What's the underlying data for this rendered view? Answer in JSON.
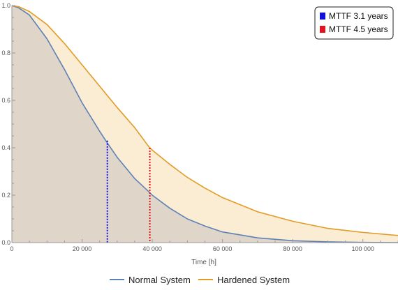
{
  "chart_data": {
    "type": "area",
    "title": "",
    "xlabel": "Time [h]",
    "ylabel": "",
    "xlim": [
      0,
      110000
    ],
    "ylim": [
      0,
      1.0
    ],
    "x_ticks": [
      0,
      20000,
      40000,
      60000,
      80000,
      100000
    ],
    "x_tick_labels": [
      "0",
      "20 000",
      "40 000",
      "60 000",
      "80 000",
      "100 000"
    ],
    "y_ticks": [
      0,
      0.2,
      0.4,
      0.6,
      0.8,
      1.0
    ],
    "y_tick_labels": [
      "0.0",
      "0.2",
      "0.4",
      "0.6",
      "0.8",
      "1.0"
    ],
    "grid": false,
    "series": [
      {
        "name": "Normal System",
        "color": "#5e81b5",
        "fill": "#dfd6c9",
        "x": [
          0,
          2000,
          5000,
          10000,
          15000,
          20000,
          25000,
          27200,
          30000,
          35000,
          39000,
          40000,
          45000,
          50000,
          55000,
          60000,
          70000,
          80000,
          90000,
          100000,
          110000
        ],
        "values": [
          1.0,
          0.99,
          0.96,
          0.86,
          0.73,
          0.59,
          0.47,
          0.42,
          0.36,
          0.27,
          0.215,
          0.2,
          0.145,
          0.1,
          0.07,
          0.045,
          0.02,
          0.008,
          0.003,
          0.001,
          0.0
        ]
      },
      {
        "name": "Hardened System",
        "color": "#e19c24",
        "fill": "#fbecd4",
        "x": [
          0,
          2000,
          5000,
          10000,
          15000,
          20000,
          25000,
          30000,
          35000,
          39000,
          40000,
          45000,
          50000,
          55000,
          60000,
          70000,
          80000,
          90000,
          100000,
          110000
        ],
        "values": [
          1.0,
          0.995,
          0.975,
          0.92,
          0.84,
          0.75,
          0.66,
          0.57,
          0.485,
          0.405,
          0.39,
          0.33,
          0.275,
          0.23,
          0.19,
          0.13,
          0.09,
          0.06,
          0.043,
          0.03
        ]
      }
    ],
    "markers": [
      {
        "name": "MTTF 3.1 years",
        "color": "#1010dd",
        "x": 27200,
        "y_top": 0.43
      },
      {
        "name": "MTTF 4.5 years",
        "color": "#e0141e",
        "x": 39300,
        "y_top": 0.4
      }
    ],
    "legend_position": "top-right",
    "series_legend_position": "bottom"
  }
}
